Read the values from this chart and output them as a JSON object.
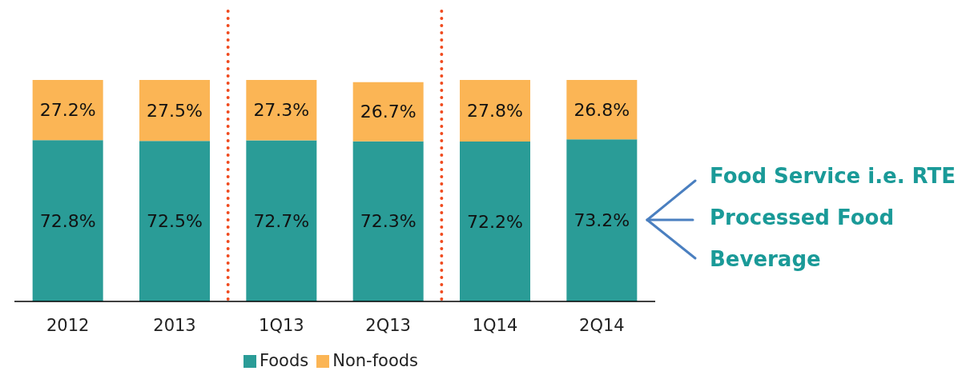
{
  "chart_data": {
    "type": "bar",
    "stacked": true,
    "categories": [
      "2012",
      "2013",
      "1Q13",
      "2Q13",
      "1Q14",
      "2Q14"
    ],
    "series": [
      {
        "name": "Foods",
        "color": "#2a9c97",
        "values": [
          72.8,
          72.5,
          72.7,
          72.3,
          72.2,
          73.2
        ],
        "value_labels": [
          "72.8%",
          "72.5%",
          "72.7%",
          "72.3%",
          "72.2%",
          "73.2%"
        ]
      },
      {
        "name": "Non-foods",
        "color": "#fbb555",
        "values": [
          27.2,
          27.5,
          27.3,
          26.7,
          27.8,
          26.8
        ],
        "value_labels": [
          "27.2%",
          "27.5%",
          "27.3%",
          "26.7%",
          "27.8%",
          "26.8%"
        ]
      }
    ],
    "legend": "bottom",
    "annotations": [
      "Food Service i.e. RTE",
      "Processed Food",
      "Beverage"
    ]
  }
}
